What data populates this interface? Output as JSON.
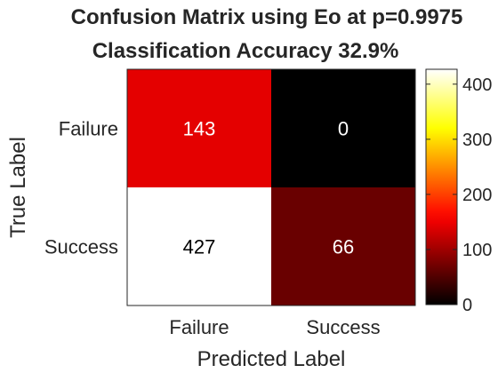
{
  "chart_data": {
    "type": "heatmap",
    "title": "Confusion Matrix using Eo at p=0.9975",
    "subtitle": "Classification Accuracy 32.9%",
    "xlabel": "Predicted Label",
    "ylabel": "True Label",
    "x_categories": [
      "Failure",
      "Success"
    ],
    "y_categories": [
      "Failure",
      "Success"
    ],
    "values": [
      [
        143,
        0
      ],
      [
        427,
        66
      ]
    ],
    "colormap": "hot",
    "colorbar": {
      "range": [
        0,
        427
      ],
      "ticks": [
        "0",
        "100",
        "200",
        "300",
        "400"
      ]
    }
  }
}
